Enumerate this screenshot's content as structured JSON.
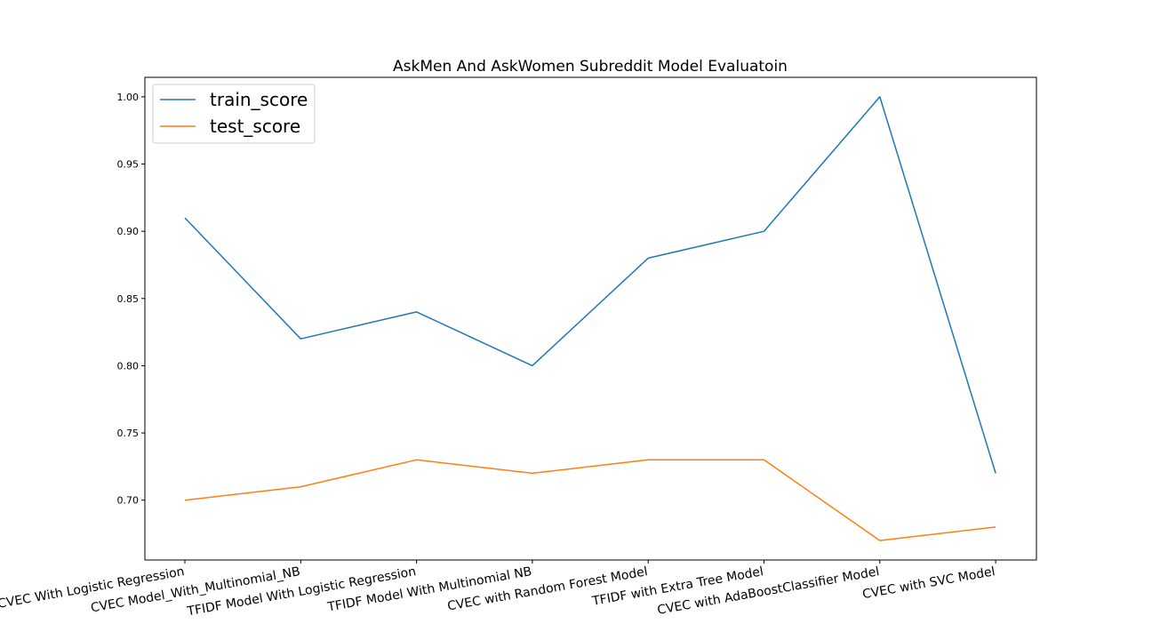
{
  "chart_data": {
    "type": "line",
    "title": "AskMen And AskWomen Subreddit Model Evaluatoin",
    "xlabel": "",
    "ylabel": "",
    "categories": [
      "CVEC With Logistic Regression",
      "CVEC Model_With_Multinomial_NB",
      "TFIDF Model With Logistic Regression",
      "TFIDF Model With Multinomial NB",
      "CVEC with Random Forest Model",
      "TFIDF with Extra Tree Model",
      "CVEC with AdaBoostClassifier Model",
      "CVEC with SVC Model"
    ],
    "series": [
      {
        "name": "train_score",
        "color": "#1f77b4",
        "values": [
          0.91,
          0.82,
          0.84,
          0.8,
          0.88,
          0.9,
          1.0,
          0.72
        ]
      },
      {
        "name": "test_score",
        "color": "#ff7f0e",
        "values": [
          0.7,
          0.71,
          0.73,
          0.72,
          0.73,
          0.73,
          0.67,
          0.68
        ]
      }
    ],
    "ylim": [
      0.6555,
      1.0145
    ],
    "yticks": [
      "0.70",
      "0.75",
      "0.80",
      "0.85",
      "0.90",
      "0.95",
      "1.00"
    ],
    "grid": false,
    "legend_position": "upper left"
  }
}
